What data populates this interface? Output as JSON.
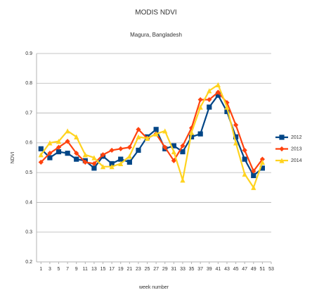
{
  "chart_data": {
    "type": "line",
    "title": "MODIS NDVI",
    "subtitle": "Magura, Bangladesh",
    "x_label": "week number",
    "y_label": "NDVI",
    "x": [
      1,
      3,
      5,
      7,
      9,
      11,
      13,
      15,
      17,
      19,
      21,
      23,
      25,
      27,
      29,
      31,
      33,
      35,
      37,
      39,
      41,
      43,
      45,
      47,
      49,
      51
    ],
    "xlim": [
      0,
      53
    ],
    "xticks": [
      1,
      3,
      5,
      7,
      9,
      11,
      13,
      15,
      17,
      19,
      21,
      23,
      25,
      27,
      29,
      31,
      33,
      35,
      37,
      39,
      41,
      43,
      45,
      47,
      49,
      51,
      53
    ],
    "ylim": [
      0.2,
      0.9
    ],
    "yticks": [
      0.2,
      0.3,
      0.4,
      0.5,
      0.6,
      0.7,
      0.8,
      0.9
    ],
    "grid": true,
    "legend": "right",
    "series": [
      {
        "name": "2012",
        "color": "#004586",
        "marker": "square",
        "values": [
          0.58,
          0.55,
          0.57,
          0.565,
          0.545,
          0.54,
          0.515,
          0.555,
          0.53,
          0.545,
          0.535,
          0.575,
          0.62,
          0.645,
          0.58,
          0.59,
          0.57,
          0.62,
          0.63,
          0.72,
          0.76,
          0.705,
          0.62,
          0.545,
          0.49,
          0.515
        ]
      },
      {
        "name": "2013",
        "color": "#ff420e",
        "marker": "diamond",
        "values": [
          0.535,
          0.565,
          0.585,
          0.605,
          0.565,
          0.535,
          0.53,
          0.56,
          0.575,
          0.58,
          0.585,
          0.645,
          0.615,
          0.63,
          0.585,
          0.54,
          0.59,
          0.65,
          0.745,
          0.745,
          0.77,
          0.735,
          0.66,
          0.575,
          0.505,
          0.545
        ]
      },
      {
        "name": "2014",
        "color": "#ffd320",
        "marker": "triangle",
        "values": [
          0.56,
          0.6,
          0.605,
          0.64,
          0.62,
          0.56,
          0.55,
          0.52,
          0.52,
          0.53,
          0.555,
          0.62,
          0.615,
          0.63,
          0.64,
          0.57,
          0.475,
          0.635,
          0.72,
          0.775,
          0.795,
          0.72,
          0.6,
          0.495,
          0.45,
          0.535
        ]
      }
    ]
  }
}
